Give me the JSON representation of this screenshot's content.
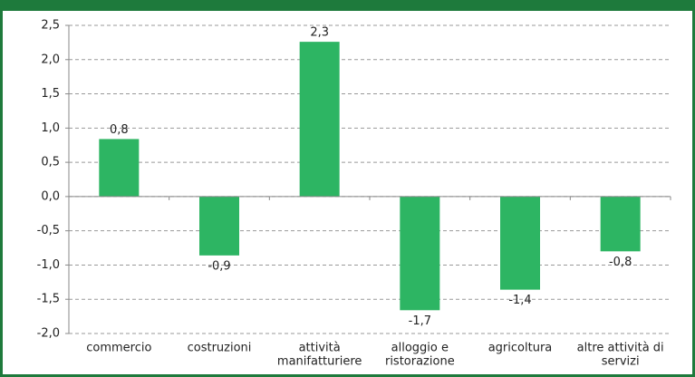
{
  "chart_data": {
    "type": "bar",
    "categories": [
      [
        "commercio"
      ],
      [
        "costruzioni"
      ],
      [
        "attività",
        "manifatturiere"
      ],
      [
        "alloggio e",
        "ristorazione"
      ],
      [
        "agricoltura"
      ],
      [
        "altre attività di",
        "servizi"
      ]
    ],
    "values": [
      0.84,
      -0.86,
      2.26,
      -1.66,
      -1.36,
      -0.8
    ],
    "value_labels": [
      "0,8",
      "-0,9",
      "2,3",
      "-1,7",
      "-1,4",
      "-0,8"
    ],
    "color": "#2db563",
    "ylim": [
      -2,
      2.5
    ],
    "yticks": [
      {
        "value": -2,
        "label": "-2,0"
      },
      {
        "value": -1.5,
        "label": "-1,5"
      },
      {
        "value": -1,
        "label": "-1,0"
      },
      {
        "value": -0.5,
        "label": "-0,5"
      },
      {
        "value": 0,
        "label": "0,0"
      },
      {
        "value": 0.5,
        "label": "0,5"
      },
      {
        "value": 1,
        "label": "1,0"
      },
      {
        "value": 1.5,
        "label": "1,5"
      },
      {
        "value": 2,
        "label": "2,0"
      },
      {
        "value": 2.5,
        "label": "2,5"
      }
    ],
    "grid": true
  }
}
